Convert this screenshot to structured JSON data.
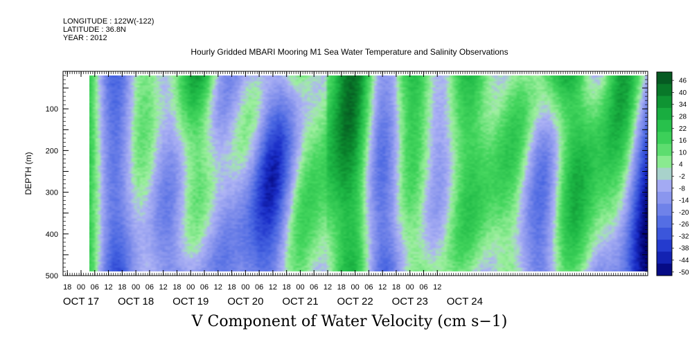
{
  "header": {
    "longitude": "LONGITUDE : 122W(-122)",
    "latitude": "LATITUDE : 36.8N",
    "year": "YEAR : 2012"
  },
  "chart_data": {
    "type": "heatmap",
    "title": "Hourly Gridded MBARI Mooring M1 Sea Water Temperature and Salinity Observations",
    "xlabel": "V Component of Water Velocity (cm s−1)",
    "ylabel": "DEPTH (m)",
    "y_ticks": [
      "100",
      "200",
      "300",
      "400",
      "500"
    ],
    "y_tick_values": [
      100,
      200,
      300,
      400,
      500
    ],
    "ylim": [
      500,
      10
    ],
    "x_hour_labels": [
      "18",
      "00",
      "06",
      "12",
      "18",
      "00",
      "06",
      "12",
      "18",
      "00",
      "06",
      "12",
      "18",
      "00",
      "06",
      "12",
      "18",
      "00",
      "06",
      "12",
      "18",
      "00",
      "06",
      "12",
      "18",
      "00",
      "06",
      "12"
    ],
    "x_day_labels": [
      "OCT 17",
      "OCT 18",
      "OCT 19",
      "OCT 20",
      "OCT 21",
      "OCT 22",
      "OCT 23",
      "OCT 24"
    ],
    "colorbar_labels": [
      "46",
      "40",
      "34",
      "28",
      "22",
      "16",
      "10",
      "4",
      "-2",
      "-8",
      "-14",
      "-20",
      "-26",
      "-32",
      "-38",
      "-44",
      "-50"
    ],
    "colorbar_range": [
      -50,
      52
    ],
    "data_start_depth": 20,
    "data_end_depth": 490
  }
}
